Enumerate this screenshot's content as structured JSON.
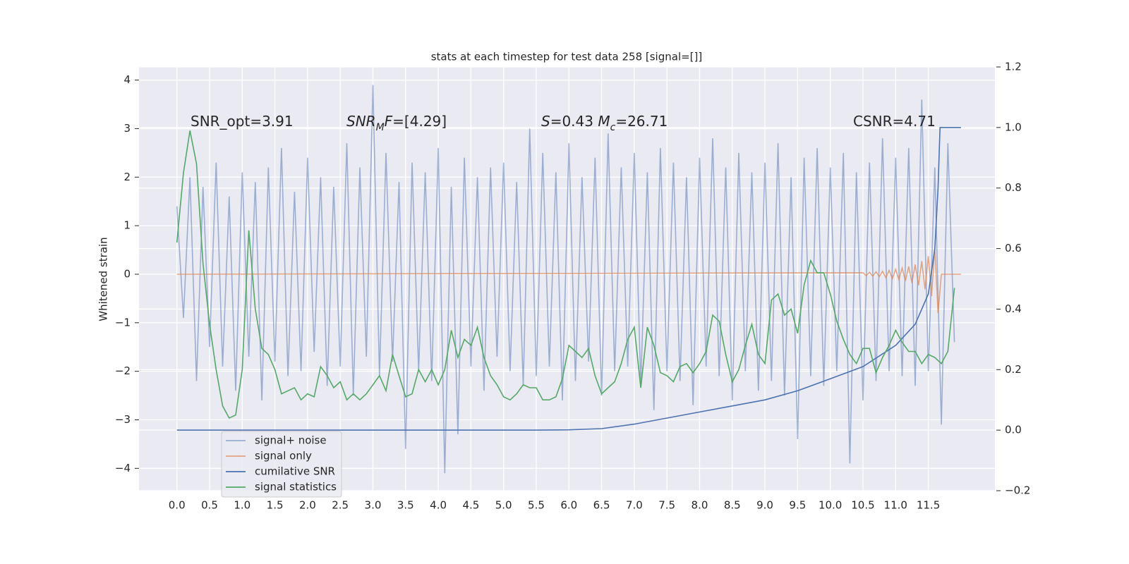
{
  "chart_data": {
    "type": "line",
    "title": "stats at each timestep for test data 258 [signal=[]]",
    "ylabel": "Whitened strain",
    "grid": true,
    "legend": "lower left",
    "annotations": [
      {
        "parts": [
          {
            "text": "SNR_opt=3.91"
          }
        ]
      },
      {
        "parts": [
          {
            "text": "SNR",
            "italic": true
          },
          {
            "text": "M",
            "italic": true,
            "sub": true
          },
          {
            "text": "F",
            "italic": true
          },
          {
            "text": "=[4.29]"
          }
        ]
      },
      {
        "parts": [
          {
            "text": "S",
            "italic": true
          },
          {
            "text": "=0.43   "
          },
          {
            "text": "M",
            "italic": true
          },
          {
            "text": "c",
            "italic": true,
            "sub": true
          },
          {
            "text": "=26.71"
          }
        ]
      },
      {
        "parts": [
          {
            "text": "CSNR=4.71"
          }
        ]
      }
    ],
    "xlim": [
      -0.58,
      12.52
    ],
    "ylim": [
      -4.46,
      4.27
    ],
    "y2lim": [
      -0.2,
      1.2
    ],
    "xticks": [
      {
        "value": 0,
        "label": "0.0"
      },
      0.5,
      {
        "value": 1,
        "label": "1.0"
      },
      1.5,
      {
        "value": 2,
        "label": "2.0"
      },
      2.5,
      {
        "value": 3,
        "label": "3.0"
      },
      3.5,
      {
        "value": 4,
        "label": "4.0"
      },
      4.5,
      {
        "value": 5,
        "label": "5.0"
      },
      5.5,
      {
        "value": 6,
        "label": "6.0"
      },
      6.5,
      {
        "value": 7,
        "label": "7.0"
      },
      7.5,
      {
        "value": 8,
        "label": "8.0"
      },
      8.5,
      {
        "value": 9,
        "label": "9.0"
      },
      9.5,
      {
        "value": 10,
        "label": "10.0"
      },
      10.5,
      {
        "value": 11,
        "label": "11.0"
      },
      11.5
    ],
    "yticks": [
      {
        "value": -4,
        "label": "−4"
      },
      {
        "value": -3,
        "label": "−3"
      },
      {
        "value": -2,
        "label": "−2"
      },
      {
        "value": -1,
        "label": "−1"
      },
      0,
      1,
      2,
      3,
      4
    ],
    "y2ticks": [
      {
        "value": -0.2,
        "label": "−0.2"
      },
      {
        "value": 0,
        "label": "0.0"
      },
      0.2,
      0.4,
      0.6,
      0.8,
      {
        "value": 1,
        "label": "1.0"
      },
      1.2
    ],
    "x": [
      0,
      0.1,
      0.2,
      0.3,
      0.4,
      0.5,
      0.6,
      0.7,
      0.8,
      0.9,
      1,
      1.1,
      1.2,
      1.3,
      1.4,
      1.5,
      1.6,
      1.7,
      1.8,
      1.9,
      2,
      2.1,
      2.2,
      2.3,
      2.4,
      2.5,
      2.6,
      2.7,
      2.8,
      2.9,
      3,
      3.1,
      3.2,
      3.3,
      3.4,
      3.5,
      3.6,
      3.7,
      3.8,
      3.9,
      4,
      4.1,
      4.2,
      4.3,
      4.4,
      4.5,
      4.6,
      4.7,
      4.8,
      4.9,
      5,
      5.1,
      5.2,
      5.3,
      5.4,
      5.5,
      5.6,
      5.7,
      5.8,
      5.9,
      6,
      6.1,
      6.2,
      6.3,
      6.4,
      6.5,
      6.6,
      6.7,
      6.8,
      6.9,
      7,
      7.1,
      7.2,
      7.3,
      7.4,
      7.5,
      7.6,
      7.7,
      7.8,
      7.9,
      8,
      8.1,
      8.2,
      8.3,
      8.4,
      8.5,
      8.6,
      8.7,
      8.8,
      8.9,
      9,
      9.1,
      9.2,
      9.3,
      9.4,
      9.5,
      9.6,
      9.7,
      9.8,
      9.9,
      10,
      10.1,
      10.2,
      10.3,
      10.4,
      10.5,
      10.6,
      10.7,
      10.8,
      10.9,
      11,
      11.1,
      11.2,
      11.3,
      11.4,
      11.5,
      11.6,
      11.7,
      11.8,
      11.9
    ],
    "series": [
      {
        "name": "signal+ noise",
        "color": "#4c72b0",
        "opacity": 0.5,
        "values": [
          1.4,
          -0.9,
          2.0,
          -2.2,
          1.8,
          -1.5,
          2.3,
          -1.9,
          1.6,
          -2.4,
          2.1,
          -1.7,
          1.9,
          -2.6,
          2.2,
          -1.8,
          2.6,
          -2.1,
          1.7,
          -2.0,
          2.4,
          -1.6,
          2.0,
          -2.3,
          1.8,
          -1.9,
          2.7,
          -2.5,
          2.2,
          -1.7,
          3.9,
          -2.1,
          2.5,
          -1.8,
          1.9,
          -3.6,
          2.3,
          -2.0,
          2.1,
          -2.2,
          2.6,
          -4.1,
          1.8,
          -3.3,
          2.4,
          -1.9,
          2.0,
          -2.4,
          2.2,
          -1.7,
          2.3,
          -2.0,
          1.9,
          -2.3,
          3.0,
          -2.1,
          2.5,
          -1.9,
          2.1,
          -2.6,
          2.7,
          -2.2,
          2.0,
          -1.8,
          2.4,
          -2.5,
          2.9,
          -2.0,
          2.2,
          -1.9,
          2.5,
          -2.3,
          2.1,
          -2.8,
          2.6,
          -2.0,
          2.3,
          -2.2,
          2.0,
          -2.7,
          2.4,
          -1.9,
          2.8,
          -2.1,
          2.2,
          -2.6,
          2.5,
          -2.0,
          2.1,
          -2.4,
          2.3,
          -2.2,
          2.7,
          -2.5,
          2.0,
          -3.4,
          2.4,
          -2.1,
          2.6,
          -2.3,
          2.2,
          -2.0,
          2.5,
          -3.9,
          2.1,
          -2.6,
          2.3,
          -2.2,
          2.8,
          -2.0,
          2.4,
          -2.1,
          2.6,
          -2.3,
          3.6,
          -2.0,
          2.2,
          -3.1,
          2.7,
          -1.4
        ]
      },
      {
        "name": "signal only",
        "color": "#dd8452",
        "opacity": 0.7,
        "x": [
          0,
          10.5,
          10.55,
          10.6,
          10.65,
          10.7,
          10.75,
          10.8,
          10.85,
          10.9,
          10.95,
          11,
          11.05,
          11.1,
          11.15,
          11.2,
          11.25,
          11.3,
          11.35,
          11.4,
          11.45,
          11.5,
          11.55,
          11.6,
          11.65,
          11.7,
          12
        ],
        "values": [
          0,
          0.03,
          -0.03,
          0.04,
          -0.04,
          0.05,
          -0.05,
          0.06,
          -0.07,
          0.08,
          -0.09,
          0.1,
          -0.11,
          0.13,
          -0.14,
          0.16,
          -0.18,
          0.2,
          -0.23,
          0.27,
          -0.31,
          0.37,
          -0.45,
          0.55,
          -0.8,
          0,
          0
        ]
      },
      {
        "name": "cumilative SNR",
        "color": "#4c72b0",
        "opacity": 1,
        "axis": "y2",
        "x": [
          0,
          5.5,
          6,
          6.5,
          7,
          7.5,
          8,
          8.5,
          9,
          9.5,
          10,
          10.5,
          11,
          11.3,
          11.5,
          11.6,
          11.65,
          11.68,
          12
        ],
        "values": [
          0,
          0,
          0.001,
          0.005,
          0.02,
          0.04,
          0.06,
          0.08,
          0.1,
          0.13,
          0.17,
          0.21,
          0.28,
          0.35,
          0.45,
          0.6,
          0.8,
          1.0,
          1.0
        ]
      },
      {
        "name": "signal statistics",
        "color": "#55a868",
        "opacity": 1,
        "axis": "y2",
        "values": [
          0.62,
          0.85,
          0.99,
          0.88,
          0.55,
          0.35,
          0.2,
          0.08,
          0.04,
          0.05,
          0.2,
          0.66,
          0.4,
          0.27,
          0.25,
          0.2,
          0.12,
          0.13,
          0.14,
          0.1,
          0.12,
          0.11,
          0.21,
          0.18,
          0.14,
          0.16,
          0.1,
          0.12,
          0.1,
          0.12,
          0.15,
          0.18,
          0.13,
          0.25,
          0.18,
          0.11,
          0.12,
          0.2,
          0.16,
          0.2,
          0.15,
          0.2,
          0.33,
          0.24,
          0.3,
          0.28,
          0.34,
          0.24,
          0.18,
          0.15,
          0.11,
          0.1,
          0.12,
          0.15,
          0.14,
          0.14,
          0.1,
          0.1,
          0.11,
          0.17,
          0.28,
          0.26,
          0.24,
          0.27,
          0.18,
          0.12,
          0.14,
          0.16,
          0.22,
          0.3,
          0.34,
          0.14,
          0.34,
          0.28,
          0.19,
          0.18,
          0.16,
          0.21,
          0.22,
          0.19,
          0.22,
          0.26,
          0.38,
          0.36,
          0.25,
          0.16,
          0.2,
          0.28,
          0.35,
          0.25,
          0.22,
          0.43,
          0.45,
          0.38,
          0.4,
          0.32,
          0.48,
          0.56,
          0.52,
          0.52,
          0.45,
          0.36,
          0.3,
          0.25,
          0.22,
          0.27,
          0.27,
          0.19,
          0.24,
          0.28,
          0.33,
          0.29,
          0.26,
          0.26,
          0.22,
          0.25,
          0.24,
          0.22,
          0.26,
          0.47
        ]
      }
    ]
  }
}
